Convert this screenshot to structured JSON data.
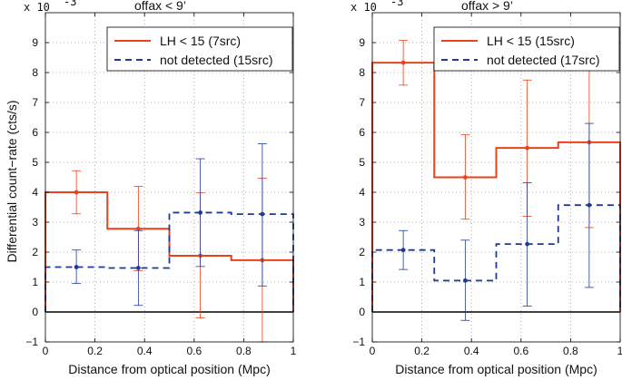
{
  "figure": {
    "ylabel": "Differential count−rate (cts/s)",
    "xlabel": "Distance from optical position (Mpc)"
  },
  "chart_data": [
    {
      "type": "line",
      "title": "offax < 9’",
      "multiplier": "x 10",
      "multiplier_exp": "-3",
      "xlabel": "Distance from optical position (Mpc)",
      "ylabel": "Differential count−rate (cts/s)",
      "xlim": [
        0,
        1
      ],
      "ylim": [
        -1,
        10
      ],
      "xticks": [
        0,
        0.2,
        0.4,
        0.6,
        0.8,
        1
      ],
      "xtick_labels": [
        "0",
        "0.2",
        "0.4",
        "0.6",
        "0.8",
        "1"
      ],
      "yticks": [
        -1,
        0,
        1,
        2,
        3,
        4,
        5,
        6,
        7,
        8,
        9
      ],
      "ytick_labels": [
        "−1",
        "0",
        "1",
        "2",
        "3",
        "4",
        "5",
        "6",
        "7",
        "8",
        "9"
      ],
      "grid": true,
      "legend_position": "top-right",
      "bin_edges": [
        0,
        0.25,
        0.5,
        0.75,
        1.0
      ],
      "series": [
        {
          "name": "LH < 15 (7src)",
          "style": "solid",
          "color": "#e8431e",
          "x": [
            0.125,
            0.375,
            0.625,
            0.875
          ],
          "y": [
            4.0,
            2.78,
            1.88,
            1.73
          ],
          "err_low": [
            3.28,
            1.38,
            -0.2,
            -1.0
          ],
          "err_high": [
            4.72,
            4.2,
            3.98,
            4.47
          ]
        },
        {
          "name": "not detected (15src)",
          "style": "dashed",
          "color": "#1f3a93",
          "x": [
            0.125,
            0.375,
            0.625,
            0.875
          ],
          "y": [
            1.5,
            1.47,
            3.32,
            3.27
          ],
          "err_low": [
            0.95,
            0.22,
            1.52,
            0.87
          ],
          "err_high": [
            2.07,
            2.72,
            5.12,
            5.62
          ]
        }
      ]
    },
    {
      "type": "line",
      "title": "offax > 9’",
      "multiplier": "x 10",
      "multiplier_exp": "-3",
      "xlabel": "Distance from optical position (Mpc)",
      "xlim": [
        0,
        1
      ],
      "ylim": [
        -1,
        10
      ],
      "xticks": [
        0,
        0.2,
        0.4,
        0.6,
        0.8,
        1
      ],
      "xtick_labels": [
        "0",
        "0.2",
        "0.4",
        "0.6",
        "0.8",
        "1"
      ],
      "yticks": [
        -1,
        0,
        1,
        2,
        3,
        4,
        5,
        6,
        7,
        8,
        9
      ],
      "ytick_labels": [
        "−1",
        "0",
        "1",
        "2",
        "3",
        "4",
        "5",
        "6",
        "7",
        "8",
        "9"
      ],
      "grid": true,
      "legend_position": "top-right",
      "bin_edges": [
        0,
        0.25,
        0.5,
        0.75,
        1.0
      ],
      "series": [
        {
          "name": "LH < 15 (15src)",
          "style": "solid",
          "color": "#e8431e",
          "x": [
            0.125,
            0.375,
            0.625,
            0.875
          ],
          "y": [
            8.33,
            4.5,
            5.48,
            5.67
          ],
          "err_low": [
            7.58,
            3.1,
            3.2,
            2.82
          ],
          "err_high": [
            9.08,
            5.92,
            7.75,
            8.52
          ]
        },
        {
          "name": "not detected (17src)",
          "style": "dashed",
          "color": "#1f3a93",
          "x": [
            0.125,
            0.375,
            0.625,
            0.875
          ],
          "y": [
            2.07,
            1.05,
            2.27,
            3.57
          ],
          "err_low": [
            1.42,
            -0.28,
            0.2,
            0.82
          ],
          "err_high": [
            2.72,
            2.4,
            4.32,
            6.3
          ]
        }
      ]
    }
  ]
}
